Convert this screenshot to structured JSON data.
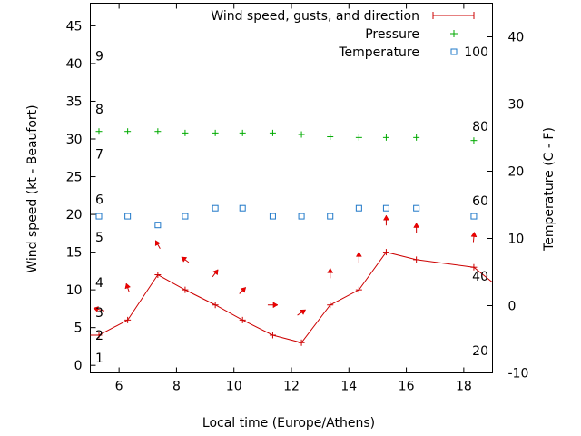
{
  "chart_data": {
    "type": "line",
    "legend": [
      {
        "name": "Wind speed, gusts, and direction",
        "color": "#cc0000",
        "marker": "errorbar-line"
      },
      {
        "name": "Pressure",
        "color": "#00aa00",
        "marker": "plus"
      },
      {
        "name": "Temperature",
        "color": "#1f78c8",
        "marker": "square"
      }
    ],
    "xlabel": "Local time (Europe/Athens)",
    "ylabel_left": "Wind speed (kt - Beaufort)",
    "ylabel_right": "Temperature (C - F)",
    "xlim": [
      5,
      19
    ],
    "ylim_left": [
      -1,
      48
    ],
    "ylim_right": [
      -10,
      45
    ],
    "x_ticks": [
      6,
      8,
      10,
      12,
      14,
      16,
      18
    ],
    "y_left_ticks": [
      0,
      5,
      10,
      15,
      20,
      25,
      30,
      35,
      40,
      45
    ],
    "y_right_ticks": [
      -10,
      0,
      10,
      20,
      30,
      40
    ],
    "beaufort_labels": [
      {
        "label": "1",
        "y": 1
      },
      {
        "label": "2",
        "y": 4
      },
      {
        "label": "3",
        "y": 7
      },
      {
        "label": "4",
        "y": 11
      },
      {
        "label": "5",
        "y": 17
      },
      {
        "label": "6",
        "y": 22
      },
      {
        "label": "7",
        "y": 28
      },
      {
        "label": "8",
        "y": 34
      },
      {
        "label": "9",
        "y": 41
      }
    ],
    "fahrenheit_labels": [
      {
        "label": "20",
        "temp_c": -6.7
      },
      {
        "label": "40",
        "temp_c": 4.4
      },
      {
        "label": "60",
        "temp_c": 15.6
      },
      {
        "label": "80",
        "temp_c": 26.7
      },
      {
        "label": "100",
        "temp_c": 37.8
      }
    ],
    "x": [
      5.3,
      6.3,
      7.35,
      8.3,
      9.35,
      10.3,
      11.35,
      12.35,
      13.35,
      14.35,
      15.3,
      16.35,
      18.35
    ],
    "wind_speed": [
      4,
      6,
      12,
      10,
      8,
      6,
      4,
      3,
      8,
      10,
      15,
      14,
      13
    ],
    "wind_line_extension": {
      "x": 19,
      "y": 11
    },
    "wind_arrows": [
      {
        "x": 5.3,
        "y": 7.4,
        "dx": -12,
        "dy": -3
      },
      {
        "x": 6.3,
        "y": 10.3,
        "dx": -3,
        "dy": -9
      },
      {
        "x": 7.35,
        "y": 16.0,
        "dx": -5,
        "dy": -9
      },
      {
        "x": 8.3,
        "y": 14.0,
        "dx": -8,
        "dy": -6
      },
      {
        "x": 9.35,
        "y": 12.2,
        "dx": 6,
        "dy": -8
      },
      {
        "x": 10.3,
        "y": 9.9,
        "dx": 7,
        "dy": -7
      },
      {
        "x": 11.35,
        "y": 8.0,
        "dx": 11,
        "dy": 0
      },
      {
        "x": 12.35,
        "y": 7.0,
        "dx": 9,
        "dy": -6
      },
      {
        "x": 13.35,
        "y": 12.2,
        "dx": 0,
        "dy": -11
      },
      {
        "x": 14.35,
        "y": 14.3,
        "dx": 0,
        "dy": -12
      },
      {
        "x": 15.3,
        "y": 19.2,
        "dx": 0,
        "dy": -11
      },
      {
        "x": 16.35,
        "y": 18.2,
        "dx": 0,
        "dy": -11
      },
      {
        "x": 18.35,
        "y": 17.0,
        "dx": 1,
        "dy": -11
      }
    ],
    "pressure": [
      31,
      31,
      31,
      30.8,
      30.8,
      30.8,
      30.8,
      30.6,
      30.3,
      30.2,
      30.2,
      30.2,
      29.8
    ],
    "temperature_c": [
      13.3,
      13.3,
      12.0,
      13.3,
      14.5,
      14.5,
      13.3,
      13.3,
      13.3,
      14.5,
      14.5,
      14.5,
      13.3
    ]
  }
}
